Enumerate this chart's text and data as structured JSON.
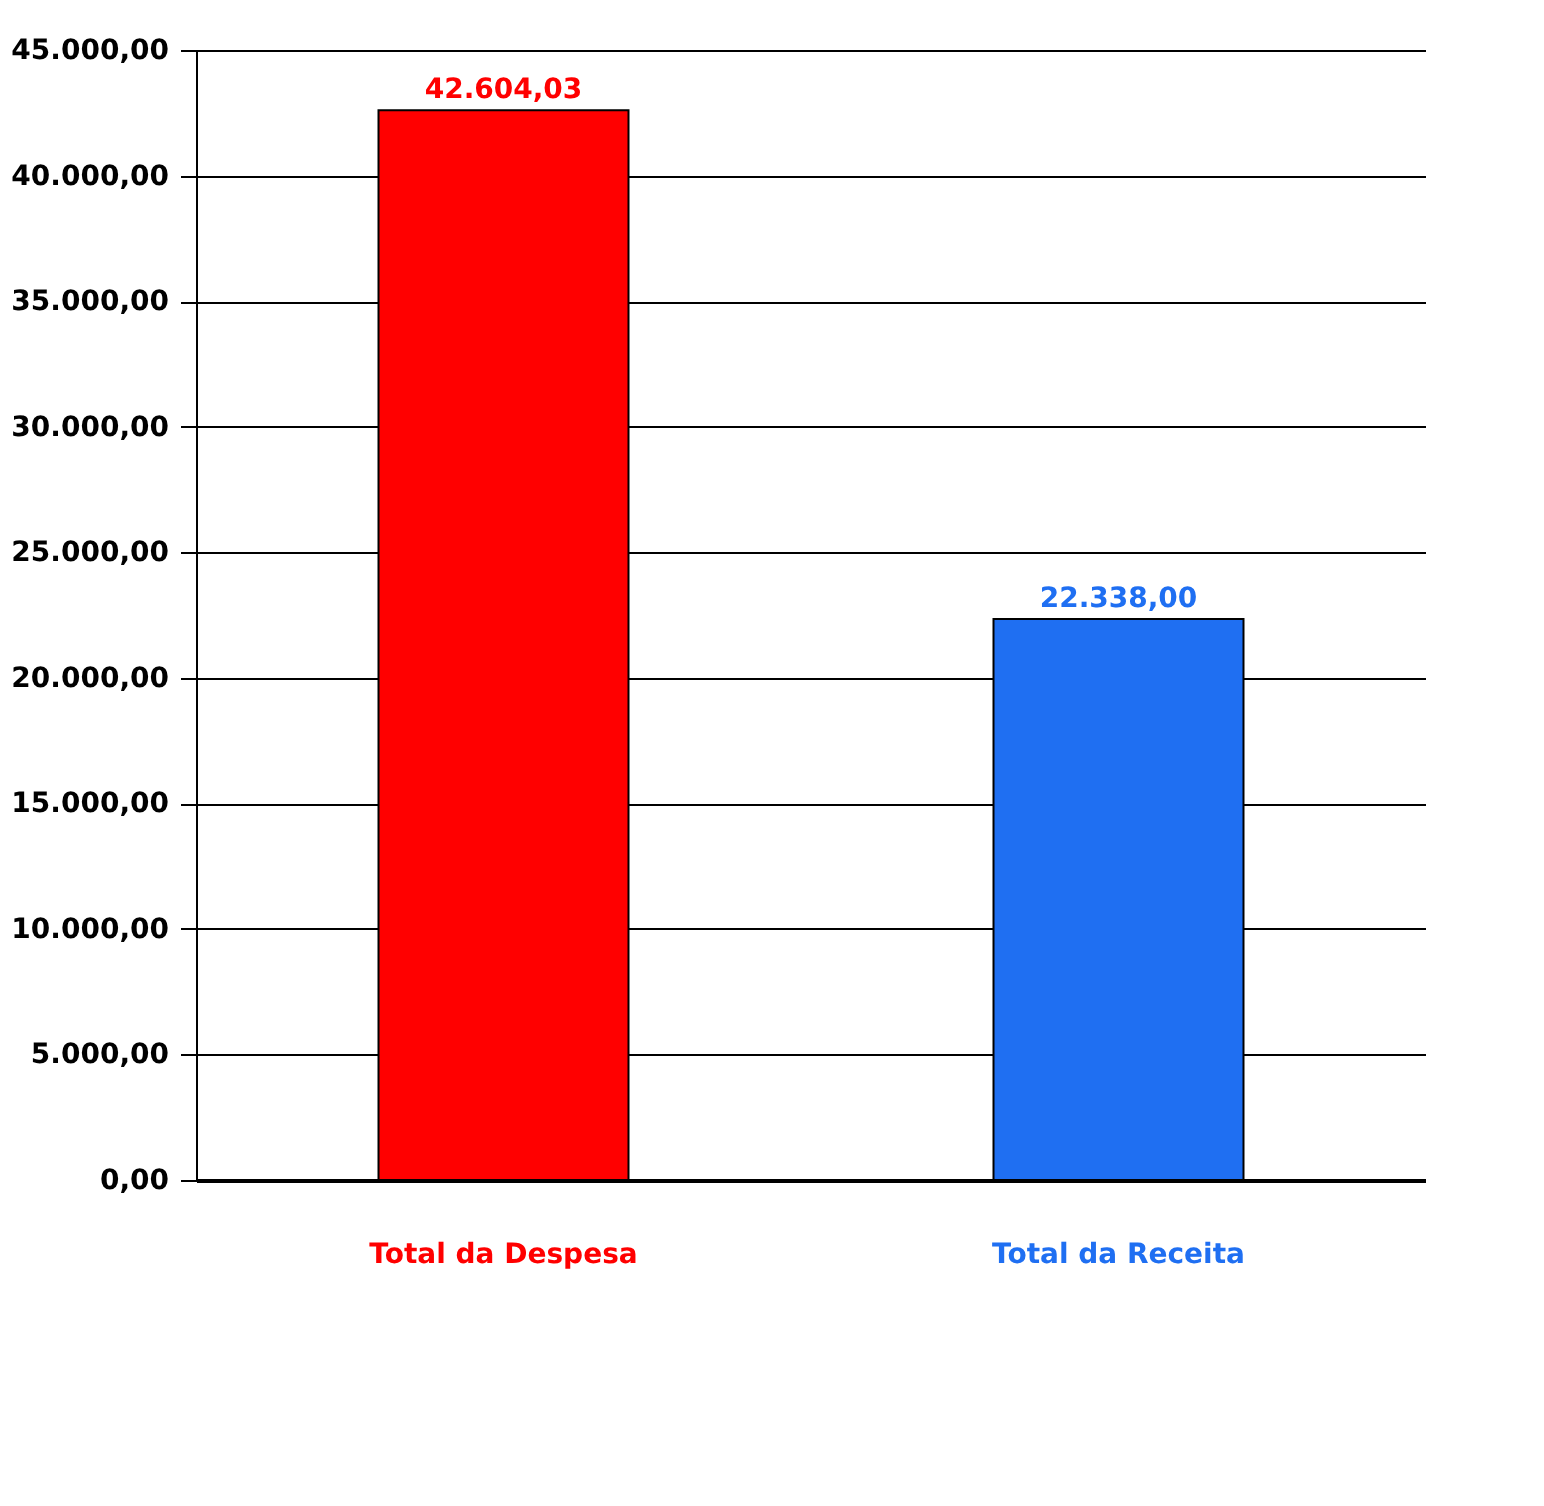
{
  "chart_data": {
    "type": "bar",
    "categories": [
      "Total da Despesa",
      "Total da Receita"
    ],
    "values": [
      42604.03,
      22338.0
    ],
    "colors": [
      "#ff0000",
      "#1f6ff2"
    ],
    "value_labels": [
      "42.604,03",
      "22.338,00"
    ],
    "ylim": [
      0,
      45000
    ],
    "yticks": [
      {
        "value": 0,
        "label": "0,00"
      },
      {
        "value": 5000,
        "label": "5.000,00"
      },
      {
        "value": 10000,
        "label": "10.000,00"
      },
      {
        "value": 15000,
        "label": "15.000,00"
      },
      {
        "value": 20000,
        "label": "20.000,00"
      },
      {
        "value": 25000,
        "label": "25.000,00"
      },
      {
        "value": 30000,
        "label": "30.000,00"
      },
      {
        "value": 35000,
        "label": "35.000,00"
      },
      {
        "value": 40000,
        "label": "40.000,00"
      },
      {
        "value": 45000,
        "label": "45.000,00"
      }
    ],
    "grid": "y",
    "legend": false
  }
}
